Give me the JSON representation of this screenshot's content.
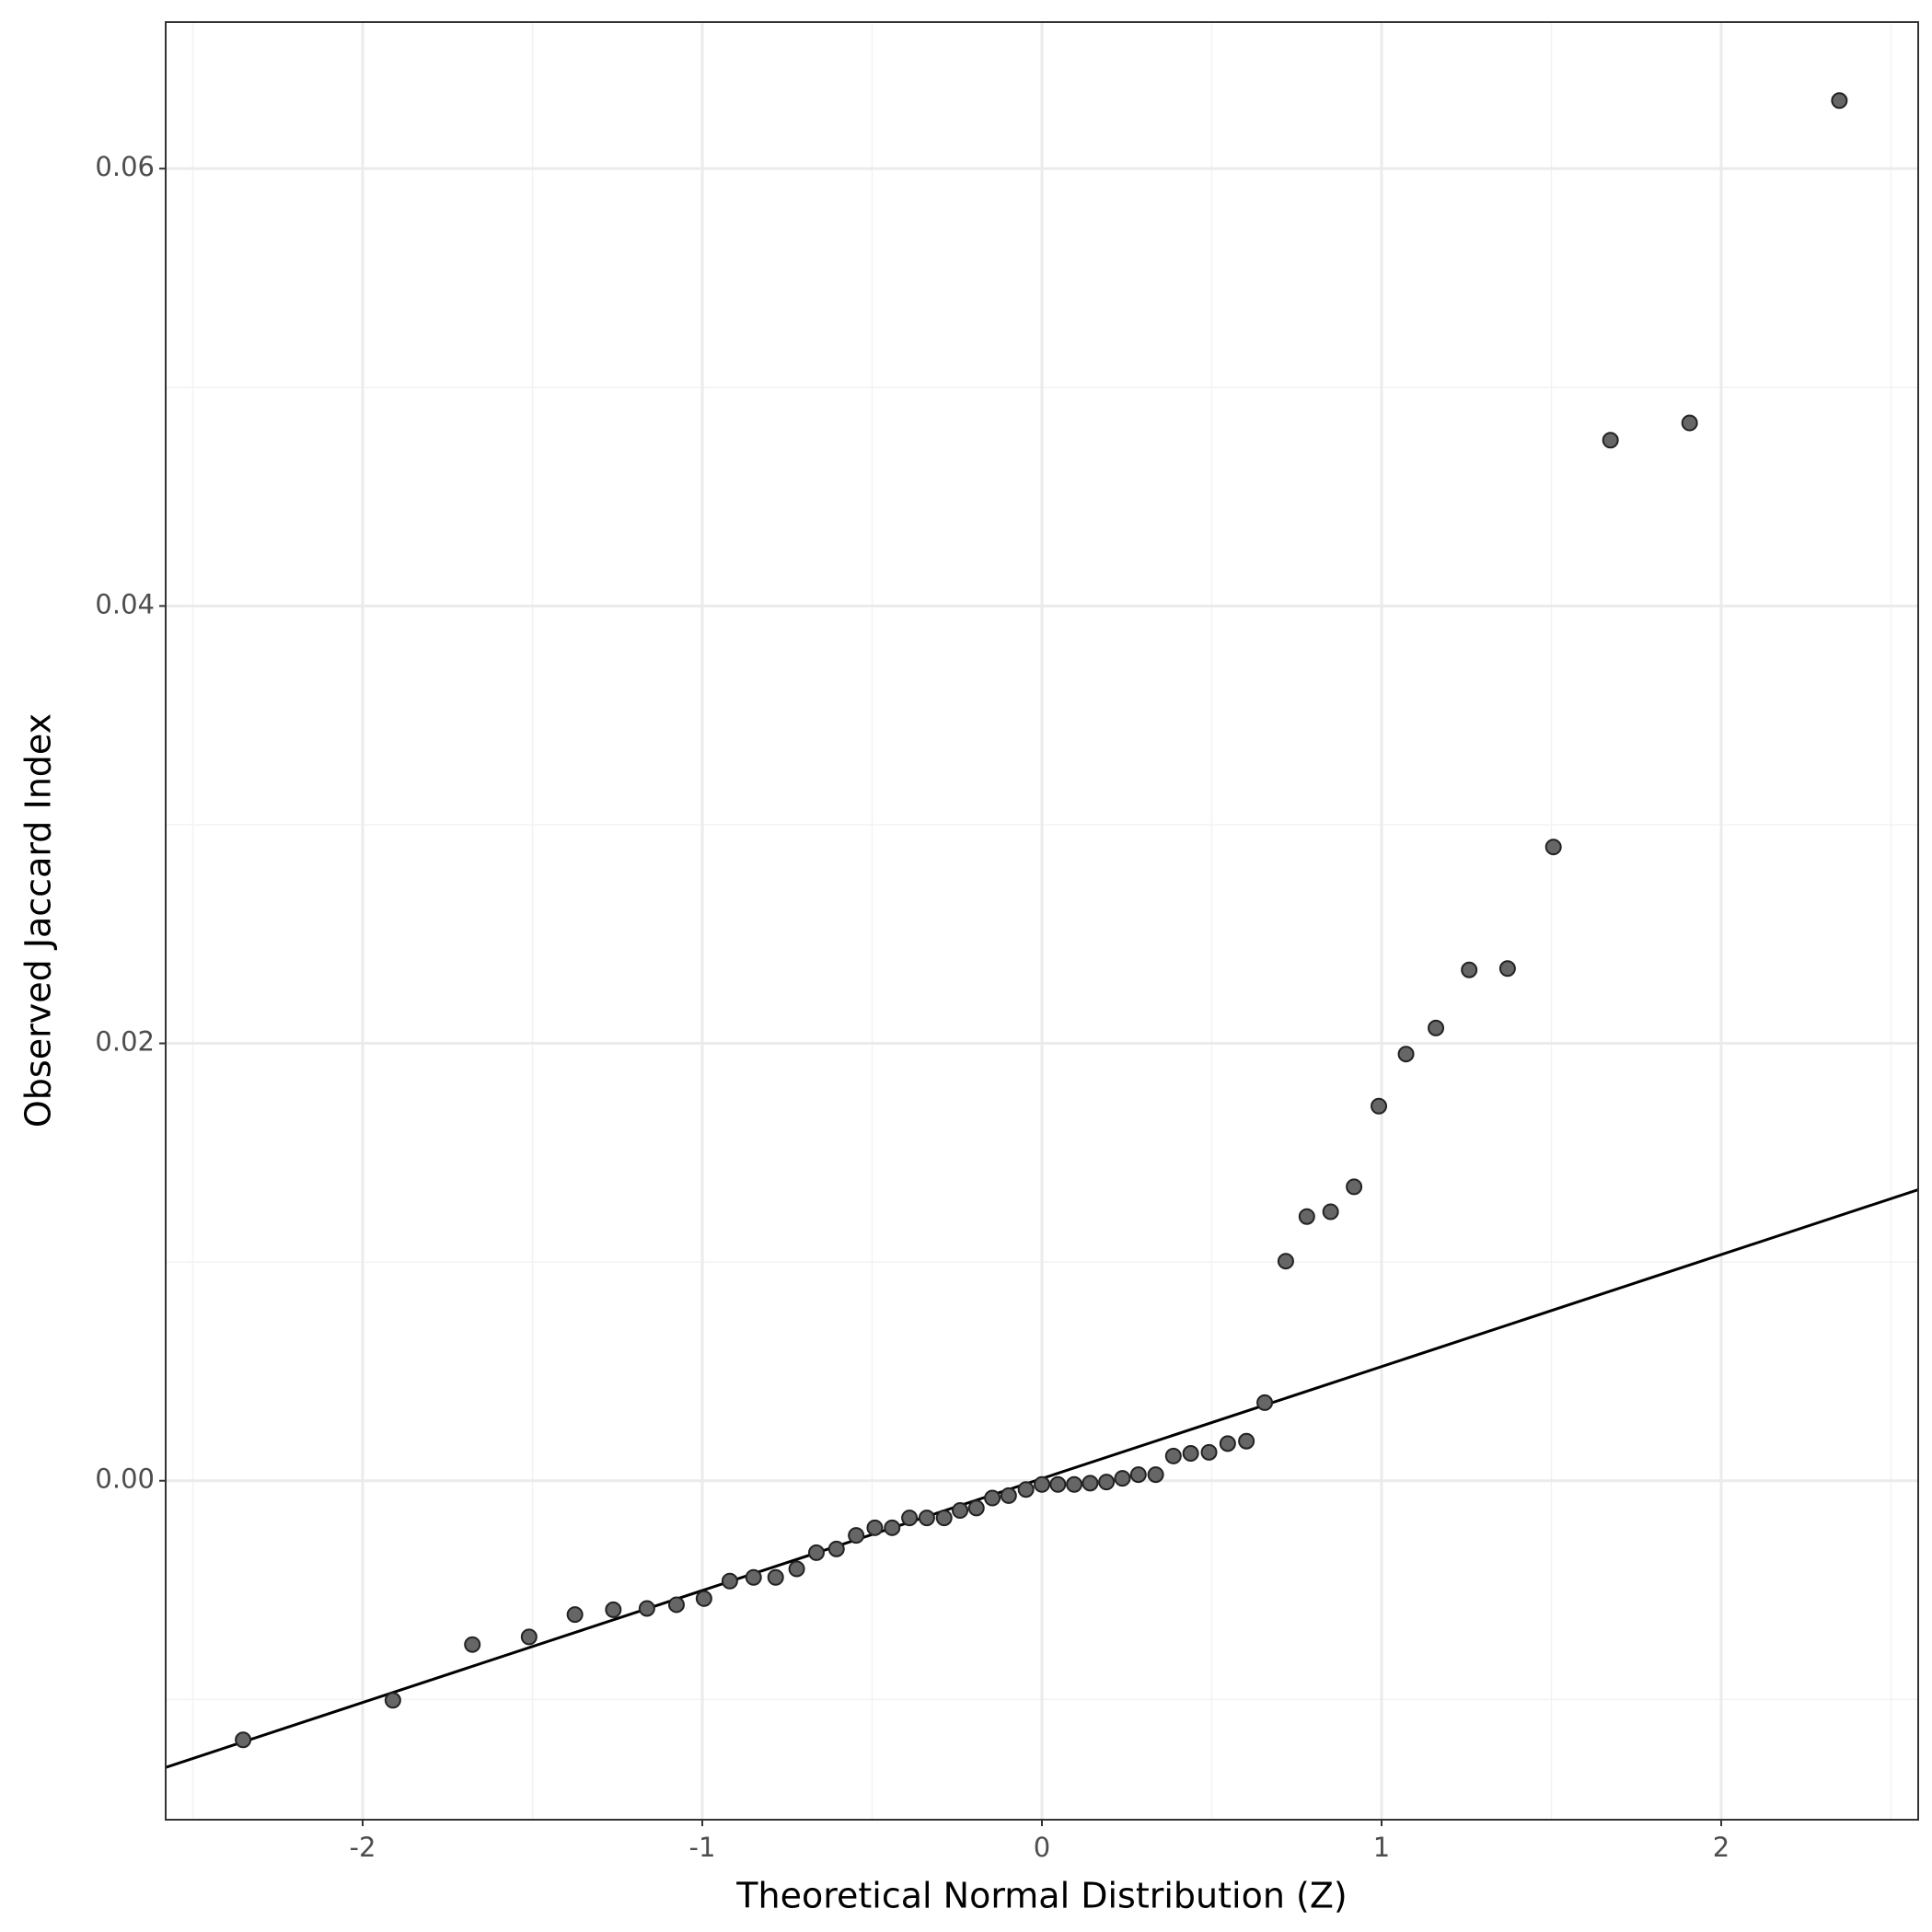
{
  "chart_data": {
    "type": "scatter",
    "x_label": "Theoretical Normal Distribution (Z)",
    "y_label": "Observed Jaccard Index",
    "xlim": [
      -2.58,
      2.58
    ],
    "ylim": [
      -0.0155,
      0.0667
    ],
    "xticks": [
      -2,
      -1,
      0,
      1,
      2
    ],
    "yticks": [
      {
        "value": 0,
        "label": "0.00"
      },
      {
        "value": 0.02,
        "label": "0.02"
      },
      {
        "value": 0.04,
        "label": "0.04"
      },
      {
        "value": 0.06,
        "label": "0.06"
      }
    ],
    "x_minor_ticks": [
      -2.5,
      -1.5,
      -0.5,
      0.5,
      1.5,
      2.5
    ],
    "y_minor_ticks": [
      -0.01,
      0.01,
      0.03,
      0.05
    ],
    "grid": true,
    "color": "#666666",
    "reference_line": {
      "slope": 0.00512,
      "intercept": 0.0001,
      "color": "#000000"
    },
    "x": [
      -2.352,
      -1.911,
      -1.677,
      -1.51,
      -1.375,
      -1.262,
      -1.163,
      -1.076,
      -0.995,
      -0.919,
      -0.849,
      -0.784,
      -0.722,
      -0.664,
      -0.605,
      -0.547,
      -0.492,
      -0.441,
      -0.39,
      -0.339,
      -0.288,
      -0.241,
      -0.193,
      -0.146,
      -0.098,
      -0.047,
      0,
      0.047,
      0.095,
      0.142,
      0.19,
      0.237,
      0.284,
      0.335,
      0.387,
      0.438,
      0.492,
      0.547,
      0.602,
      0.656,
      0.718,
      0.78,
      0.85,
      0.919,
      0.992,
      1.072,
      1.16,
      1.258,
      1.371,
      1.506,
      1.674,
      1.907,
      2.348
    ],
    "values": [
      -0.01185,
      -0.01004,
      -0.00749,
      -0.00714,
      -0.00612,
      -0.0059,
      -0.00584,
      -0.00567,
      -0.00539,
      -0.00459,
      -0.00442,
      -0.00442,
      -0.00403,
      -0.00329,
      -0.00312,
      -0.0025,
      -0.00215,
      -0.00215,
      -0.0017,
      -0.0017,
      -0.0017,
      -0.00136,
      -0.00125,
      -0.00079,
      -0.00068,
      -0.0004,
      -0.00017,
      -0.00017,
      -0.00017,
      -0.00011,
      -6e-05,
      0.00011,
      0.00028,
      0.00028,
      0.00113,
      0.00125,
      0.0013,
      0.0017,
      0.00181,
      0.00357,
      0.01004,
      0.01208,
      0.0123,
      0.01344,
      0.01713,
      0.01951,
      0.0207,
      0.02336,
      0.02342,
      0.02898,
      0.04758,
      0.04837,
      0.06311
    ]
  }
}
